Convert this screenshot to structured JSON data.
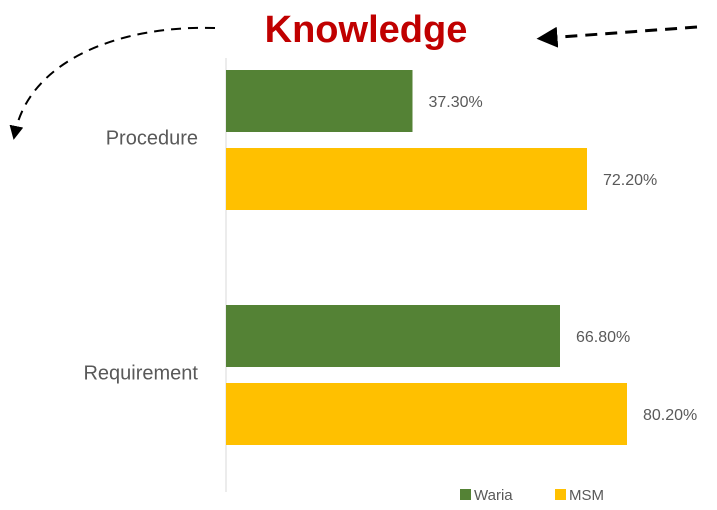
{
  "chart_data": {
    "type": "barh",
    "title": "Knowledge",
    "categories": [
      "Procedure",
      "Requirement"
    ],
    "series": [
      {
        "name": "Waria",
        "color": "#548235",
        "values": [
          37.3,
          66.8
        ],
        "value_labels": [
          "37.30%",
          "66.80%"
        ]
      },
      {
        "name": "MSM",
        "color": "#ffc000",
        "values": [
          72.2,
          80.2
        ],
        "value_labels": [
          "72.20%",
          "80.20%"
        ]
      }
    ],
    "legend": "bottom"
  }
}
